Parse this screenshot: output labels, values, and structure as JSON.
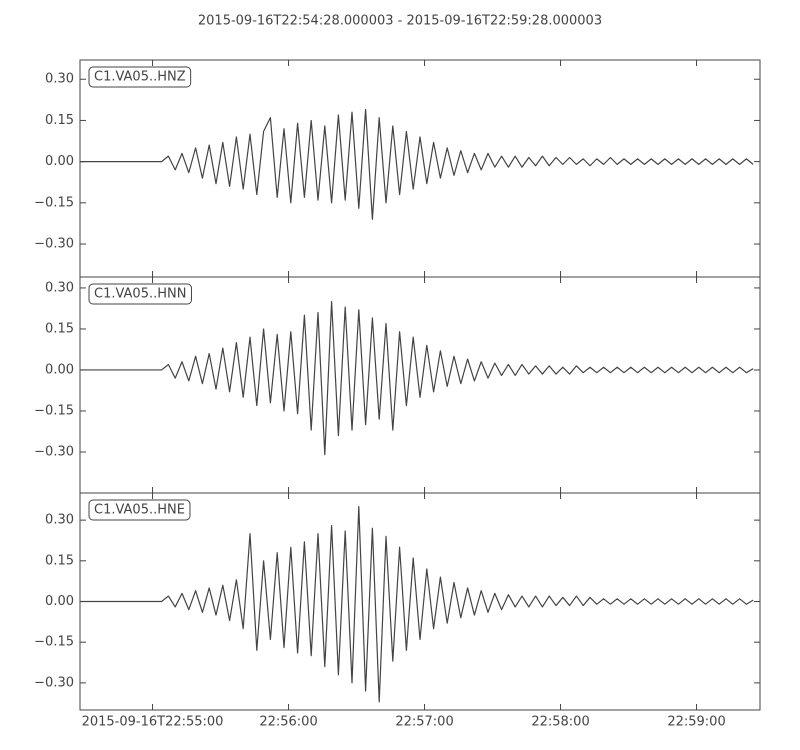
{
  "chart_data": {
    "type": "line",
    "title": "2015-09-16T22:54:28.000003  -  2015-09-16T22:59:28.000003",
    "xlim": [
      0,
      300
    ],
    "xticks": [
      {
        "value": 32,
        "label": "2015-09-16T22:55:00"
      },
      {
        "value": 92,
        "label": "22:56:00"
      },
      {
        "value": 152,
        "label": "22:57:00"
      },
      {
        "value": 212,
        "label": "22:58:00"
      },
      {
        "value": 272,
        "label": "22:59:00"
      }
    ],
    "x": [
      0,
      3,
      6,
      9,
      12,
      15,
      18,
      21,
      24,
      27,
      30,
      33,
      36,
      39,
      42,
      45,
      48,
      51,
      54,
      57,
      60,
      63,
      66,
      69,
      72,
      75,
      78,
      81,
      84,
      87,
      90,
      93,
      96,
      99,
      102,
      105,
      108,
      111,
      114,
      117,
      120,
      123,
      126,
      129,
      132,
      135,
      138,
      141,
      144,
      147,
      150,
      153,
      156,
      159,
      162,
      165,
      168,
      171,
      174,
      177,
      180,
      183,
      186,
      189,
      192,
      195,
      198,
      201,
      204,
      207,
      210,
      213,
      216,
      219,
      222,
      225,
      228,
      231,
      234,
      237,
      240,
      243,
      246,
      249,
      252,
      255,
      258,
      261,
      264,
      267,
      270,
      273,
      276,
      279,
      282,
      285,
      288,
      291,
      294,
      297
    ],
    "series": [
      {
        "name": "C1.VA05..HNZ",
        "color": "#444444",
        "ylim": [
          -0.42,
          0.37
        ],
        "yticks": [
          {
            "value": -0.3,
            "label": "−0.30"
          },
          {
            "value": -0.15,
            "label": "−0.15"
          },
          {
            "value": 0,
            "label": "0.00"
          },
          {
            "value": 0.15,
            "label": "0.15"
          },
          {
            "value": 0.3,
            "label": "0.30"
          }
        ],
        "values": [
          0,
          0,
          0,
          0,
          0,
          0,
          0,
          0,
          0,
          0,
          0,
          0,
          0,
          0.02,
          -0.03,
          0.03,
          -0.04,
          0.05,
          -0.06,
          0.06,
          -0.08,
          0.07,
          -0.09,
          0.09,
          -0.1,
          0.1,
          -0.12,
          0.11,
          0.16,
          -0.13,
          0.12,
          -0.15,
          0.14,
          -0.13,
          0.15,
          -0.14,
          0.13,
          -0.15,
          0.17,
          -0.14,
          0.18,
          -0.17,
          0.19,
          -0.21,
          0.16,
          -0.15,
          0.13,
          -0.12,
          0.11,
          -0.1,
          0.09,
          -0.08,
          0.07,
          -0.06,
          0.05,
          -0.05,
          0.04,
          -0.04,
          0.03,
          -0.03,
          0.03,
          -0.02,
          0.02,
          -0.02,
          0.02,
          -0.02,
          0.015,
          -0.015,
          0.02,
          -0.015,
          0.015,
          -0.01,
          0.015,
          -0.01,
          0.01,
          -0.015,
          0.01,
          -0.01,
          0.015,
          -0.01,
          0.01,
          -0.01,
          0.01,
          -0.01,
          0.01,
          -0.01,
          0.01,
          -0.01,
          0.01,
          -0.01,
          0.01,
          -0.01,
          0.01,
          -0.01,
          0.01,
          -0.01,
          0.01,
          -0.01,
          0.01,
          -0.01
        ]
      },
      {
        "name": "C1.VA05..HNN",
        "color": "#444444",
        "ylim": [
          -0.45,
          0.34
        ],
        "yticks": [
          {
            "value": -0.3,
            "label": "−0.30"
          },
          {
            "value": -0.15,
            "label": "−0.15"
          },
          {
            "value": 0,
            "label": "0.00"
          },
          {
            "value": 0.15,
            "label": "0.15"
          },
          {
            "value": 0.3,
            "label": "0.30"
          }
        ],
        "values": [
          0,
          0,
          0,
          0,
          0,
          0,
          0,
          0,
          0,
          0,
          0,
          0,
          0,
          0.02,
          -0.03,
          0.03,
          -0.04,
          0.05,
          -0.05,
          0.06,
          -0.07,
          0.08,
          -0.08,
          0.1,
          -0.1,
          0.12,
          -0.13,
          0.15,
          -0.12,
          0.13,
          -0.15,
          0.14,
          -0.16,
          0.2,
          -0.22,
          0.21,
          -0.31,
          0.25,
          -0.24,
          0.23,
          -0.22,
          0.22,
          -0.2,
          0.19,
          -0.18,
          0.17,
          -0.22,
          0.14,
          -0.13,
          0.12,
          -0.1,
          0.09,
          -0.08,
          0.07,
          -0.06,
          0.05,
          -0.05,
          0.04,
          -0.04,
          0.03,
          -0.03,
          0.025,
          -0.02,
          0.02,
          -0.02,
          0.02,
          -0.015,
          0.015,
          -0.015,
          0.015,
          -0.015,
          0.01,
          -0.015,
          0.015,
          -0.01,
          0.01,
          -0.01,
          0.01,
          -0.01,
          0.01,
          -0.01,
          0.01,
          -0.01,
          0.01,
          -0.01,
          0.01,
          -0.01,
          0.01,
          -0.01,
          0.01,
          -0.01,
          0.01,
          -0.01,
          0.01,
          -0.01,
          0.01,
          -0.01,
          0.01,
          -0.01,
          0.005
        ]
      },
      {
        "name": "C1.VA05..HNE",
        "color": "#444444",
        "ylim": [
          -0.4,
          0.4
        ],
        "yticks": [
          {
            "value": -0.3,
            "label": "−0.30"
          },
          {
            "value": -0.15,
            "label": "−0.15"
          },
          {
            "value": 0,
            "label": "0.00"
          },
          {
            "value": 0.15,
            "label": "0.15"
          },
          {
            "value": 0.3,
            "label": "0.30"
          }
        ],
        "values": [
          0,
          0,
          0,
          0,
          0,
          0,
          0,
          0,
          0,
          0,
          0,
          0,
          0,
          0.02,
          -0.02,
          0.03,
          -0.03,
          0.04,
          -0.04,
          0.05,
          -0.05,
          0.06,
          -0.07,
          0.08,
          -0.1,
          0.25,
          -0.18,
          0.15,
          -0.14,
          0.18,
          -0.17,
          0.2,
          -0.19,
          0.22,
          -0.2,
          0.25,
          -0.24,
          0.28,
          -0.27,
          0.26,
          -0.3,
          0.35,
          -0.33,
          0.27,
          -0.37,
          0.24,
          -0.22,
          0.2,
          -0.18,
          0.16,
          -0.14,
          0.12,
          -0.1,
          0.09,
          -0.08,
          0.07,
          -0.06,
          0.05,
          -0.05,
          0.04,
          -0.04,
          0.03,
          -0.03,
          0.025,
          -0.02,
          0.02,
          -0.02,
          0.02,
          -0.02,
          0.02,
          -0.015,
          0.015,
          -0.015,
          0.02,
          -0.015,
          0.015,
          -0.01,
          0.01,
          -0.01,
          0.01,
          -0.01,
          0.01,
          -0.01,
          0.01,
          -0.01,
          0.01,
          -0.01,
          0.01,
          -0.01,
          0.01,
          -0.01,
          0.01,
          -0.01,
          0.01,
          -0.01,
          0.01,
          -0.01,
          0.01,
          -0.01,
          0.005
        ]
      }
    ]
  }
}
